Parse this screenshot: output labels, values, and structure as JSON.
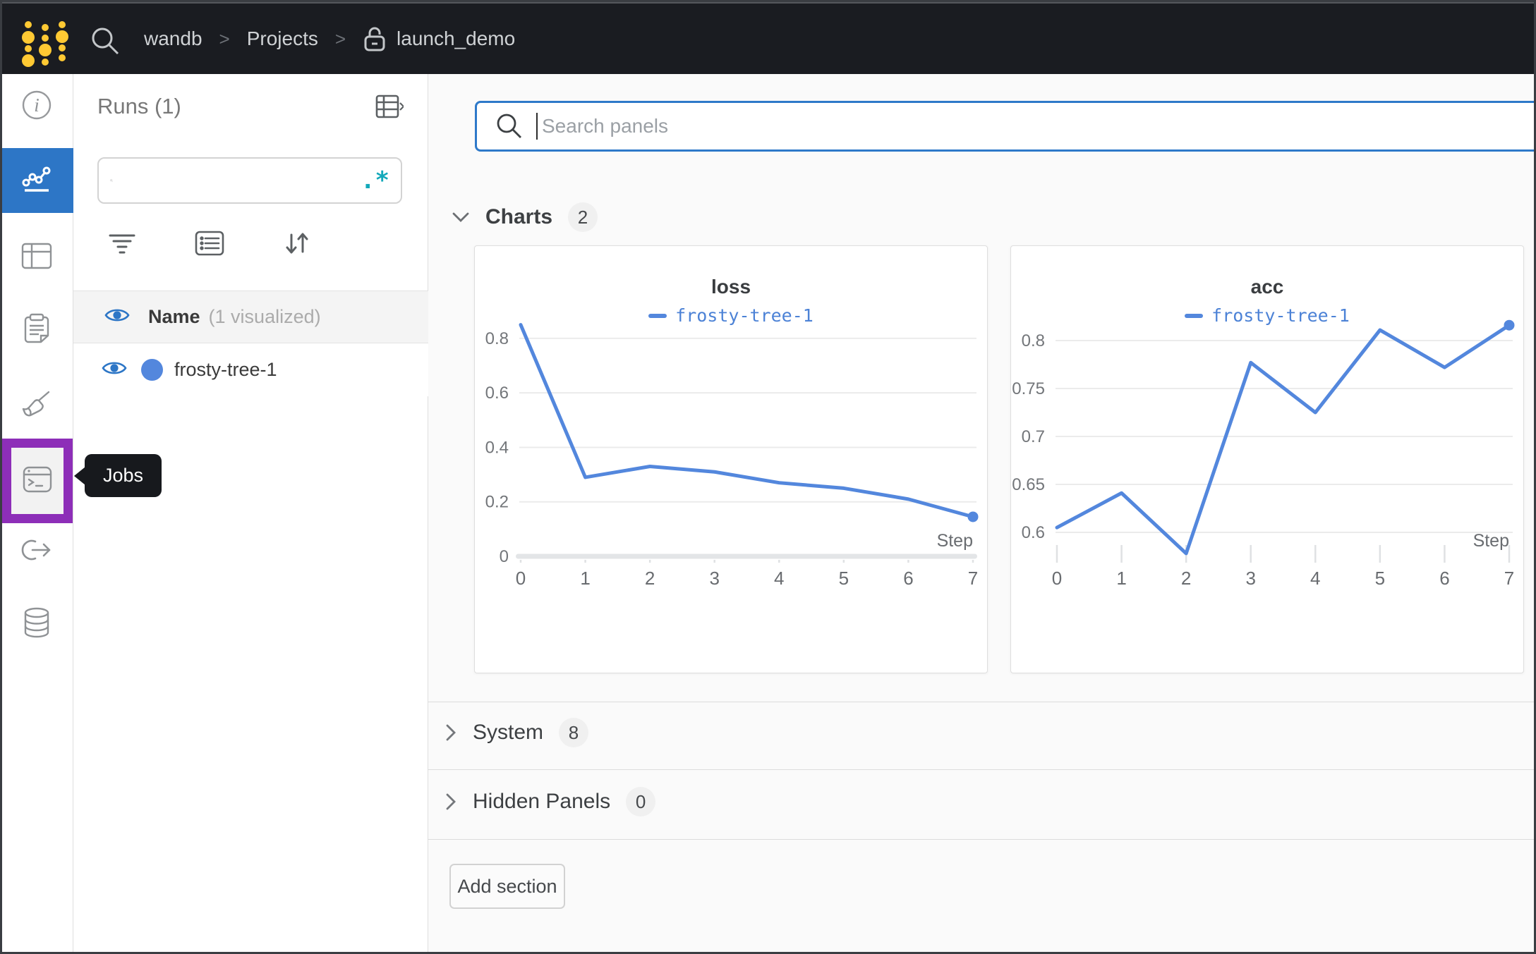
{
  "colors": {
    "accent_blue": "#2d76c6",
    "highlight_purple": "#8d2eb8",
    "run_color": "#5387dd",
    "regex_teal": "#13a9ba",
    "logo_gold": "#ffc933",
    "topbar_bg": "#1a1c21",
    "tooltip_bg": "#17191d"
  },
  "topbar": {
    "breadcrumb": [
      {
        "label": "wandb"
      },
      {
        "label": "Projects"
      },
      {
        "label": "launch_demo",
        "locked": true
      }
    ]
  },
  "sidebar": {
    "tooltip_label": "Jobs",
    "items": [
      {
        "name": "overview",
        "active": false
      },
      {
        "name": "workspace",
        "active": true
      },
      {
        "name": "runs-table",
        "active": false
      },
      {
        "name": "logs",
        "active": false
      },
      {
        "name": "sweeps",
        "active": false
      },
      {
        "name": "jobs",
        "active": false,
        "highlighted": true
      },
      {
        "name": "launch",
        "active": false
      },
      {
        "name": "artifacts",
        "active": false
      }
    ]
  },
  "runs_panel": {
    "title": "Runs (1)",
    "search_value": "",
    "regex_glyph": ".*",
    "name_header": "Name",
    "name_suffix": "(1 visualized)",
    "runs": [
      {
        "name": "frosty-tree-1",
        "color": "#5387dd",
        "visible": true
      }
    ]
  },
  "main": {
    "search_placeholder": "Search panels",
    "sections": [
      {
        "label": "Charts",
        "count": "2",
        "expanded": true
      },
      {
        "label": "System",
        "count": "8",
        "expanded": false
      },
      {
        "label": "Hidden Panels",
        "count": "0",
        "expanded": false
      }
    ],
    "add_section_label": "Add section"
  },
  "chart_data": [
    {
      "type": "line",
      "title": "loss",
      "legend": "frosty-tree-1",
      "xlabel": "Step",
      "x": [
        0,
        1,
        2,
        3,
        4,
        5,
        6,
        7
      ],
      "values": [
        0.85,
        0.29,
        0.33,
        0.31,
        0.27,
        0.25,
        0.21,
        0.145
      ],
      "yticks": [
        0,
        0.2,
        0.4,
        0.6,
        0.8
      ],
      "ylim": [
        0,
        0.88
      ],
      "zero_axis": true,
      "line_color": "#5387dd",
      "grid": true,
      "legend_position": "top"
    },
    {
      "type": "line",
      "title": "acc",
      "legend": "frosty-tree-1",
      "xlabel": "Step",
      "x": [
        0,
        1,
        2,
        3,
        4,
        5,
        6,
        7
      ],
      "values": [
        0.605,
        0.641,
        0.578,
        0.777,
        0.725,
        0.811,
        0.772,
        0.816
      ],
      "yticks": [
        0.6,
        0.65,
        0.7,
        0.75,
        0.8
      ],
      "ylim": [
        0.575,
        0.825
      ],
      "zero_axis": false,
      "line_color": "#5387dd",
      "grid": true,
      "legend_position": "top"
    }
  ]
}
